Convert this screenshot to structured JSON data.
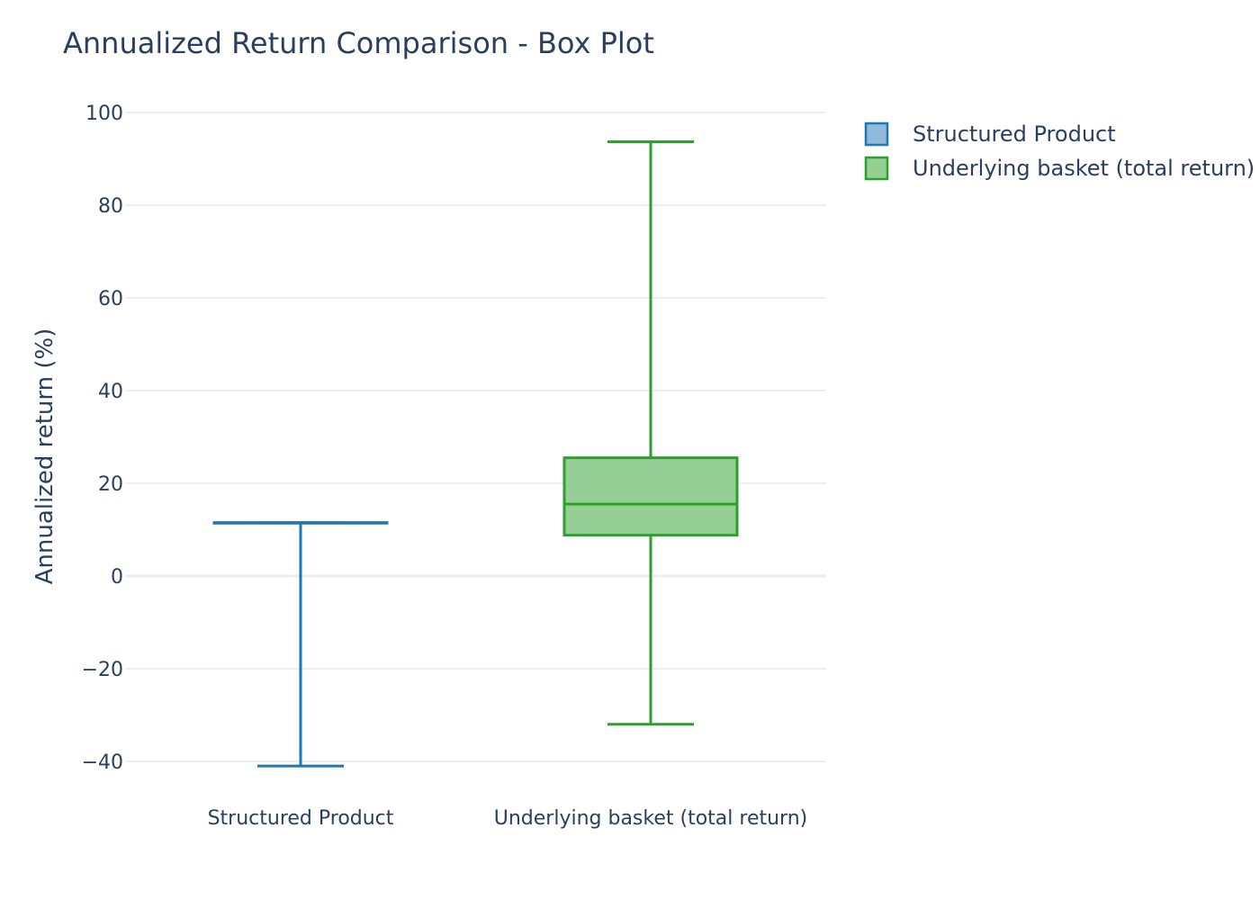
{
  "chart_data": {
    "type": "box",
    "title": "Annualized Return Comparison - Box Plot",
    "xlabel": "",
    "ylabel": "Annualized return (%)",
    "ylim": [
      -45,
      100
    ],
    "yticks": [
      100,
      80,
      60,
      40,
      20,
      0,
      -20,
      -40
    ],
    "ytick_labels": [
      "100",
      "80",
      "60",
      "40",
      "20",
      "0",
      "−20",
      "−40"
    ],
    "grid": true,
    "legend_position": "top-right",
    "categories": [
      "Structured Product",
      "Underlying basket (total return)"
    ],
    "series": [
      {
        "name": "Structured Product",
        "color": "#1f77b4",
        "fill": "#90b9dc",
        "min": -41,
        "q1": 11.5,
        "median": 11.5,
        "q3": 11.5,
        "max": 11.5
      },
      {
        "name": "Underlying basket (total return)",
        "color": "#2ca02c",
        "fill": "#96cf96",
        "min": -32,
        "q1": 8.8,
        "median": 15.5,
        "q3": 25.5,
        "max": 93.7
      }
    ]
  }
}
